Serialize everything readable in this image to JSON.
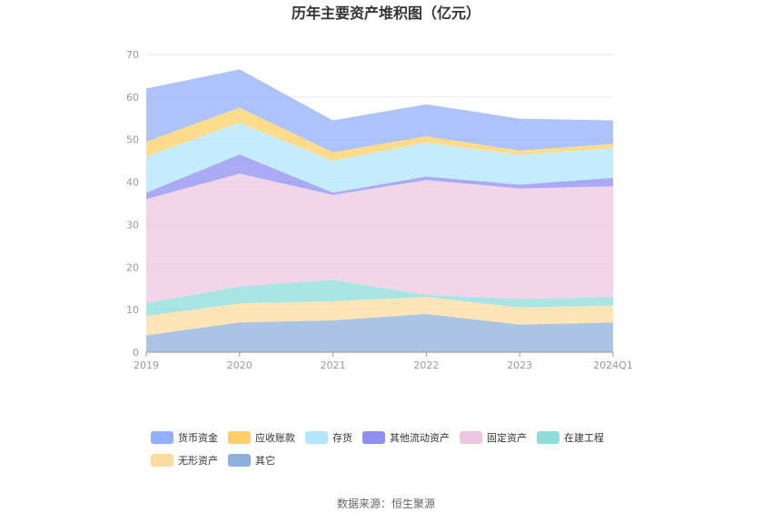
{
  "chart_data": {
    "type": "area",
    "stacked": true,
    "title": "历年主要资产堆积图（亿元）",
    "xlabel": "",
    "ylabel": "",
    "categories": [
      "2019",
      "2020",
      "2021",
      "2022",
      "2023",
      "2024Q1"
    ],
    "ylim": [
      0,
      70
    ],
    "yticks": [
      0,
      10,
      20,
      30,
      40,
      50,
      60,
      70
    ],
    "grid": true,
    "legend_position": "bottom",
    "series": [
      {
        "name": "其它",
        "color": "#8fb0dc",
        "values": [
          4.0,
          7.0,
          7.5,
          9.0,
          6.5,
          7.0
        ]
      },
      {
        "name": "无形资产",
        "color": "#fddca0",
        "values": [
          4.5,
          4.5,
          4.5,
          4.0,
          4.0,
          4.0
        ]
      },
      {
        "name": "在建工程",
        "color": "#8edcdc",
        "values": [
          3.0,
          4.0,
          5.0,
          0.5,
          2.0,
          2.0
        ]
      },
      {
        "name": "固定资产",
        "color": "#ecc7e1",
        "values": [
          24.5,
          26.5,
          20.0,
          27.0,
          26.0,
          26.0
        ]
      },
      {
        "name": "其他流动资产",
        "color": "#8f8ff2",
        "values": [
          1.5,
          4.5,
          0.5,
          0.8,
          0.9,
          2.0
        ]
      },
      {
        "name": "存货",
        "color": "#b1e6fb",
        "values": [
          8.5,
          7.5,
          7.5,
          8.0,
          7.0,
          7.0
        ]
      },
      {
        "name": "应收账款",
        "color": "#fed065",
        "values": [
          3.5,
          3.5,
          2.0,
          1.5,
          1.0,
          1.0
        ]
      },
      {
        "name": "货币资金",
        "color": "#93aefa",
        "values": [
          12.5,
          9.0,
          7.5,
          7.5,
          7.5,
          5.5
        ]
      }
    ],
    "legend_order": [
      "货币资金",
      "应收账款",
      "存货",
      "其他流动资产",
      "固定资产",
      "在建工程",
      "无形资产",
      "其它"
    ],
    "source": "数据来源：恒生聚源"
  }
}
